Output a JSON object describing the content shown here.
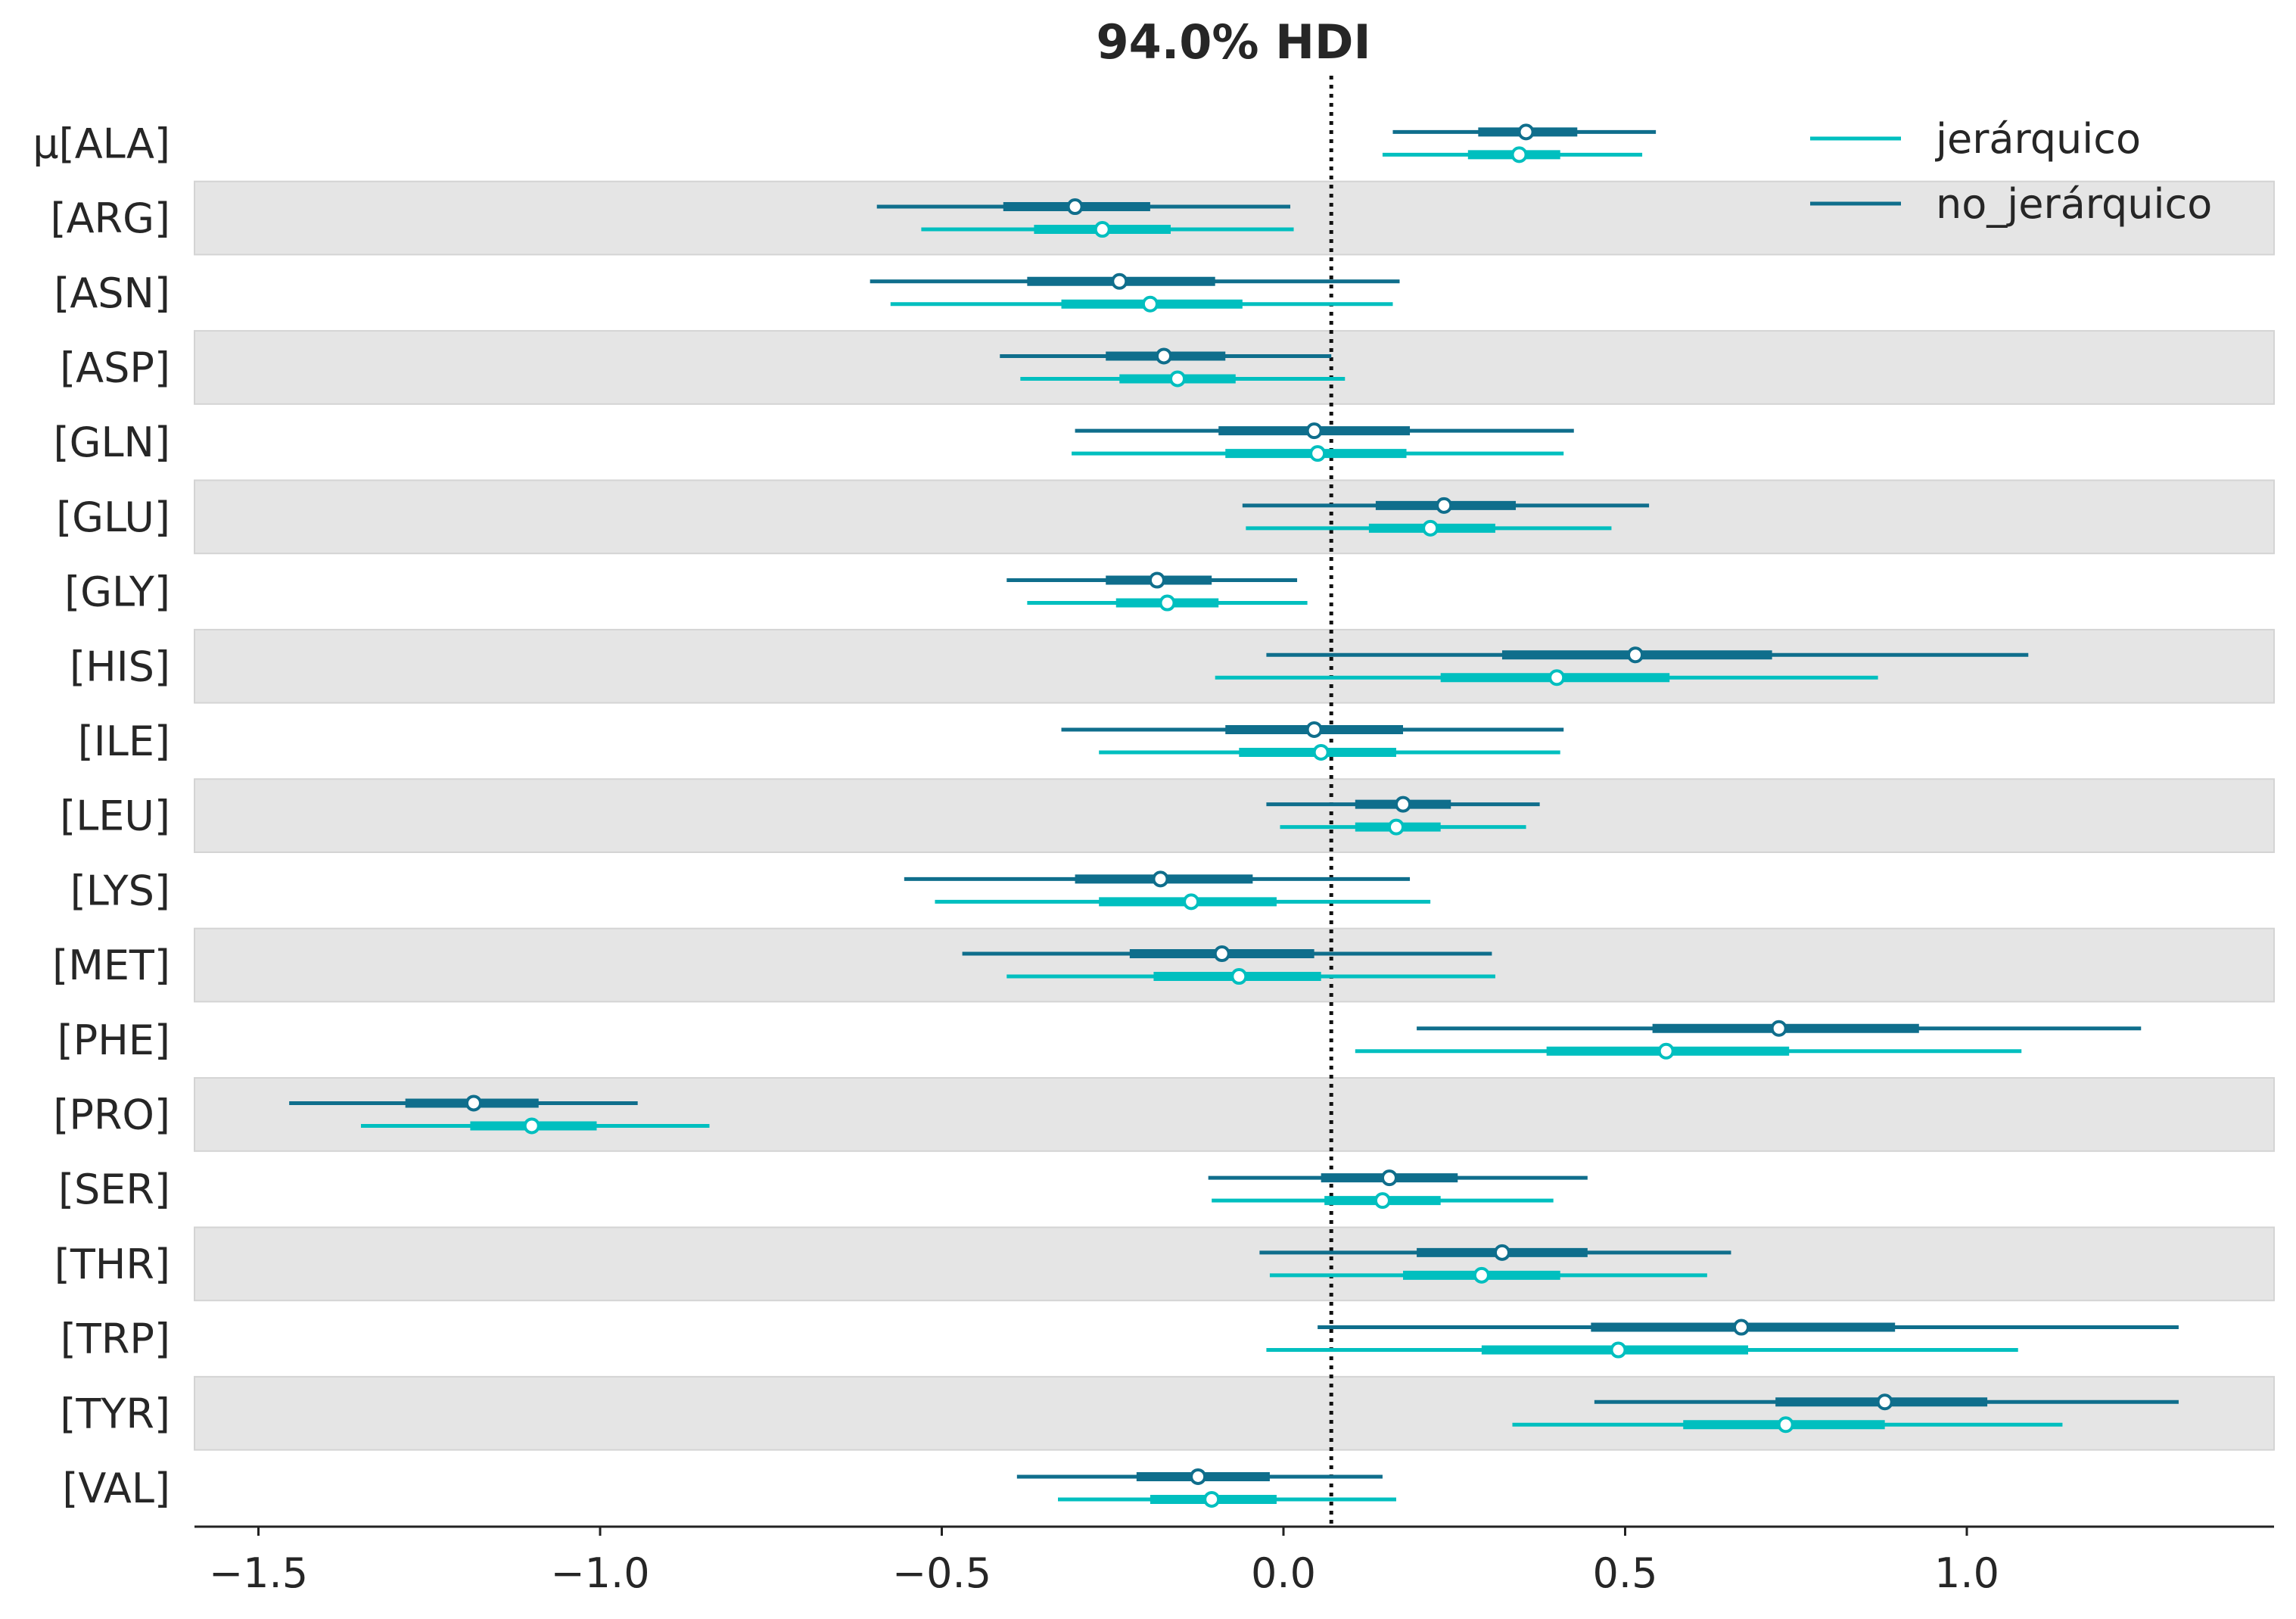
{
  "chart_data": {
    "type": "forest",
    "title": "94.0% HDI",
    "xlabel": "",
    "ylabel": "",
    "xlim": [
      -1.6,
      1.45
    ],
    "x_ticks": [
      -1.5,
      -1.0,
      -0.5,
      0.0,
      0.5,
      1.0
    ],
    "x_tick_labels": [
      "−1.5",
      "−1.0",
      "−0.5",
      "0.0",
      "0.5",
      "1.0"
    ],
    "reference_line": 0.07,
    "grid": false,
    "legend_position": "top-right",
    "labels": [
      "μ[ALA]",
      "[ARG]",
      "[ASN]",
      "[ASP]",
      "[GLN]",
      "[GLU]",
      "[GLY]",
      "[HIS]",
      "[ILE]",
      "[LEU]",
      "[LYS]",
      "[MET]",
      "[PHE]",
      "[PRO]",
      "[SER]",
      "[THR]",
      "[TRP]",
      "[TYR]",
      "[VAL]"
    ],
    "series": [
      {
        "name": "jerárquico",
        "color": "#00bfbf",
        "hdi_low": [
          0.145,
          -0.53,
          -0.575,
          -0.385,
          -0.31,
          -0.055,
          -0.375,
          -0.1,
          -0.27,
          -0.005,
          -0.51,
          -0.405,
          0.105,
          -1.35,
          -0.105,
          -0.02,
          -0.025,
          0.335,
          -0.33
        ],
        "iqr_low": [
          0.27,
          -0.365,
          -0.325,
          -0.24,
          -0.085,
          0.125,
          -0.245,
          0.23,
          -0.065,
          0.105,
          -0.27,
          -0.19,
          0.385,
          -1.19,
          0.06,
          0.175,
          0.29,
          0.585,
          -0.195
        ],
        "median": [
          0.345,
          -0.265,
          -0.195,
          -0.155,
          0.05,
          0.215,
          -0.17,
          0.4,
          0.055,
          0.165,
          -0.135,
          -0.065,
          0.56,
          -1.1,
          0.145,
          0.29,
          0.49,
          0.735,
          -0.105
        ],
        "iqr_high": [
          0.405,
          -0.165,
          -0.06,
          -0.07,
          0.18,
          0.31,
          -0.095,
          0.565,
          0.165,
          0.23,
          -0.01,
          0.055,
          0.74,
          -1.005,
          0.23,
          0.405,
          0.68,
          0.88,
          -0.01
        ],
        "hdi_high": [
          0.525,
          0.015,
          0.16,
          0.09,
          0.41,
          0.48,
          0.035,
          0.87,
          0.405,
          0.355,
          0.215,
          0.31,
          1.08,
          -0.84,
          0.395,
          0.62,
          1.075,
          1.14,
          0.165
        ]
      },
      {
        "name": "no_jerárquico",
        "color": "#0f6e8c",
        "hdi_low": [
          0.16,
          -0.595,
          -0.605,
          -0.415,
          -0.305,
          -0.06,
          -0.405,
          -0.025,
          -0.325,
          -0.025,
          -0.555,
          -0.47,
          0.195,
          -1.455,
          -0.11,
          -0.035,
          0.05,
          0.455,
          -0.39
        ],
        "iqr_low": [
          0.285,
          -0.41,
          -0.375,
          -0.26,
          -0.095,
          0.135,
          -0.26,
          0.32,
          -0.085,
          0.105,
          -0.305,
          -0.225,
          0.54,
          -1.285,
          0.055,
          0.195,
          0.45,
          0.72,
          -0.215
        ],
        "median": [
          0.355,
          -0.305,
          -0.24,
          -0.175,
          0.045,
          0.235,
          -0.185,
          0.515,
          0.045,
          0.175,
          -0.18,
          -0.09,
          0.725,
          -1.185,
          0.155,
          0.32,
          0.67,
          0.88,
          -0.125
        ],
        "iqr_high": [
          0.43,
          -0.195,
          -0.1,
          -0.085,
          0.185,
          0.34,
          -0.105,
          0.715,
          0.175,
          0.245,
          -0.045,
          0.045,
          0.93,
          -1.09,
          0.255,
          0.445,
          0.895,
          1.03,
          -0.02
        ],
        "hdi_high": [
          0.545,
          0.01,
          0.17,
          0.07,
          0.425,
          0.535,
          0.02,
          1.09,
          0.41,
          0.375,
          0.185,
          0.305,
          1.255,
          -0.945,
          0.445,
          0.655,
          1.31,
          1.31,
          0.145
        ]
      }
    ]
  }
}
